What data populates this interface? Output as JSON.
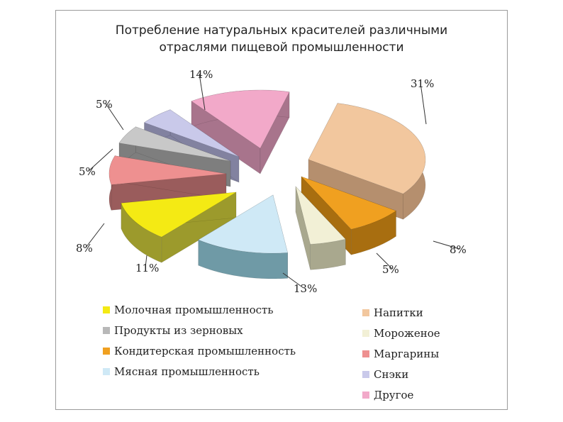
{
  "chart_data": {
    "type": "pie",
    "title": "Потребление натуральных красителей различными отраслями пищевой промышленности",
    "title_lines": [
      "Потребление натуральных красителей различными",
      "отраслями пищевой промышленности"
    ],
    "style": "3d-exploded",
    "slices": [
      {
        "label": "Напитки",
        "value": 31,
        "value_label": "31%",
        "color": "#f2c79e",
        "side": "#b58f6e"
      },
      {
        "label": "Кондитерская промышленность",
        "value": 8,
        "value_label": "8%",
        "color": "#f0a020",
        "side": "#a86e10"
      },
      {
        "label": "Мороженое",
        "value": 5,
        "value_label": "5%",
        "color": "#f2f0d6",
        "side": "#a9a88e"
      },
      {
        "label": "Мясная промышленность",
        "value": 13,
        "value_label": "13%",
        "color": "#cfe9f6",
        "side": "#6f9aa6"
      },
      {
        "label": "Молочная промышленность",
        "value": 11,
        "value_label": "11%",
        "color": "#f4ea14",
        "side": "#9c9a2c"
      },
      {
        "label": "Маргарины",
        "value": 8,
        "value_label": "8%",
        "color": "#ee9090",
        "side": "#9a5c5c"
      },
      {
        "label": "Продукты из зерновых",
        "value": 5,
        "value_label": "5%",
        "color": "#c8c8c8",
        "side": "#7e7e7e"
      },
      {
        "label": "Снэки",
        "value": 5,
        "value_label": "5%",
        "color": "#c9c9ea",
        "side": "#8282a0"
      },
      {
        "label": "Другое",
        "value": 14,
        "value_label": "14%",
        "color": "#f2a9c9",
        "side": "#a8748c"
      }
    ],
    "legend": {
      "placement": "bottom",
      "left_column": [
        {
          "label": "Молочная промышленность",
          "color": "#f4ea14"
        },
        {
          "label": "Продукты из зерновых",
          "color": "#b8b8b8"
        },
        {
          "label": "Кондитерская промышленность",
          "color": "#f0a020"
        },
        {
          "label": "Мясная промышленность",
          "color": "#cfe9f6"
        }
      ],
      "right_column": [
        {
          "label": "Напитки",
          "color": "#f2c79e"
        },
        {
          "label": "Мороженое",
          "color": "#f2f0d6"
        },
        {
          "label": "Маргарины",
          "color": "#ee9090"
        },
        {
          "label": "Снэки",
          "color": "#c9c9ea"
        },
        {
          "label": "Другое",
          "color": "#f2a9c9"
        }
      ]
    }
  }
}
